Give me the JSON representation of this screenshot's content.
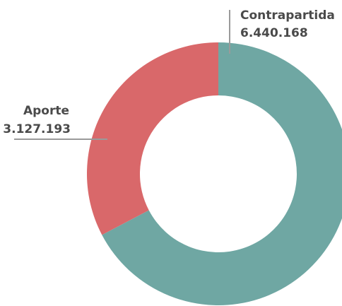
{
  "chart_data": {
    "type": "donut",
    "categories": [
      "Contrapartida",
      "Aporte"
    ],
    "values": [
      6440168,
      3127193
    ],
    "value_labels": [
      "6.440.168",
      "3.127.193"
    ],
    "colors": [
      "#6fa7a3",
      "#d9686a"
    ]
  }
}
